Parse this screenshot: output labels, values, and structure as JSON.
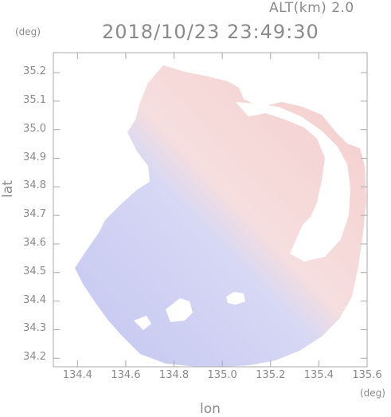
{
  "header": {
    "altitude": "ALT(km) 2.0",
    "timestamp": "2018/10/23 23:49:30"
  },
  "axes": {
    "y_unit": "(deg)",
    "x_unit": "(deg)",
    "y_label": "lat",
    "x_label": "lon",
    "y_ticks": [
      "35.2",
      "35.1",
      "35.0",
      "34.9",
      "34.8",
      "34.7",
      "34.6",
      "34.5",
      "34.4",
      "34.3",
      "34.2"
    ],
    "x_ticks": [
      "134.4",
      "134.6",
      "134.8",
      "135.0",
      "135.2",
      "135.4",
      "135.6"
    ]
  },
  "map": {
    "lon_range": [
      134.3,
      135.6
    ],
    "lat_range": [
      34.17,
      35.27
    ],
    "colors": {
      "approaching": "#c9ccf2",
      "receding": "#f6d0d0",
      "axis": "#a8a8a8"
    }
  }
}
